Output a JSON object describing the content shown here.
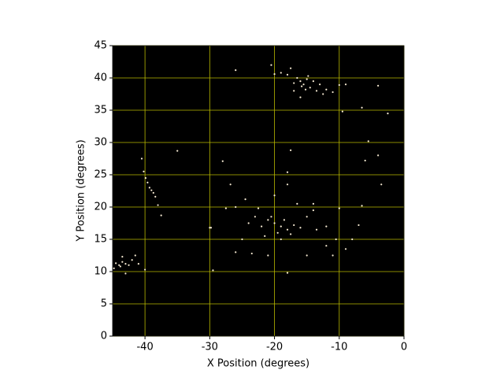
{
  "chart_data": {
    "type": "scatter",
    "xlabel": "X Position (degrees)",
    "ylabel": "Y Position (degrees)",
    "xlim": [
      -45,
      0
    ],
    "ylim": [
      0,
      45
    ],
    "xticks": [
      -40,
      -30,
      -20,
      -10,
      0
    ],
    "yticks": [
      0,
      5,
      10,
      15,
      20,
      25,
      30,
      35,
      40,
      45
    ],
    "grid": true,
    "grid_color": "#b8b800",
    "background": "#000000",
    "series": [
      {
        "color": "#f6ead2",
        "x": [
          -16,
          -15.5,
          -15,
          -14.5,
          -16.5,
          -17,
          -14,
          -15.2,
          -13.5,
          -12.5,
          -12,
          -18,
          -19,
          -20,
          -20.5,
          -17.5,
          -16,
          -14.8,
          -15.8,
          -13,
          -10,
          -9,
          -4,
          -26,
          -6.5,
          -2.5,
          -11,
          -17,
          -19,
          -20,
          -21,
          -18,
          -22,
          -19.5,
          -20.5,
          -18.5,
          -17,
          -16,
          -23,
          -24,
          -21.5,
          -19,
          -17.5,
          -15,
          -14,
          -22.5,
          -24.5,
          -20,
          -16.5,
          -13.5,
          -12,
          -12,
          -10.5,
          -8,
          -9,
          -10,
          -25,
          -26,
          -29.8,
          -18,
          -18,
          -18,
          -23.5,
          -21,
          -15,
          -11,
          -14,
          -44,
          -43.5,
          -43,
          -44.5,
          -42.5,
          -43.8,
          -42,
          -41,
          -43.5,
          -44.8,
          -41.5,
          -43,
          -40,
          -40.2,
          -39.9,
          -39.6,
          -39.3,
          -39,
          -38.7,
          -38.4,
          -38,
          -37.5,
          -40.5,
          -35,
          -28,
          -26.8,
          -30,
          -29.5,
          -17.5,
          -6,
          -5.5,
          -3.5,
          -4,
          -9.5,
          -6.5,
          -7,
          -26,
          -27.5
        ],
        "y": [
          39.5,
          39,
          39.8,
          38.5,
          40,
          39.2,
          39.5,
          38.2,
          38,
          37.5,
          38.2,
          40.5,
          40.8,
          40.6,
          42,
          41.5,
          37,
          40.3,
          38.7,
          39,
          38.9,
          39,
          38.8,
          41.2,
          35.4,
          34.5,
          37.8,
          38,
          17,
          17.5,
          18,
          16.5,
          17,
          16,
          18.5,
          18,
          17.2,
          16.8,
          18.5,
          17.5,
          15.5,
          15,
          15.8,
          18.5,
          19.5,
          19.8,
          21.2,
          21.8,
          20.5,
          16.5,
          17,
          14,
          15,
          15,
          13.5,
          19.8,
          15,
          13,
          16.8,
          23.5,
          9.8,
          25.4,
          12.8,
          12.5,
          12.5,
          12.5,
          20.5,
          11,
          11.5,
          11.2,
          11.3,
          11,
          10.8,
          11.8,
          11.2,
          12.3,
          10.5,
          12.5,
          9.7,
          10.3,
          25.5,
          24.5,
          23.8,
          23,
          22.6,
          22.2,
          21.6,
          20.3,
          18.7,
          27.5,
          28.7,
          27.1,
          23.5,
          16.8,
          10.2,
          28.8,
          27.2,
          30.2,
          23.5,
          28,
          34.8,
          20.2,
          17.2,
          20,
          19.8
        ]
      }
    ]
  }
}
